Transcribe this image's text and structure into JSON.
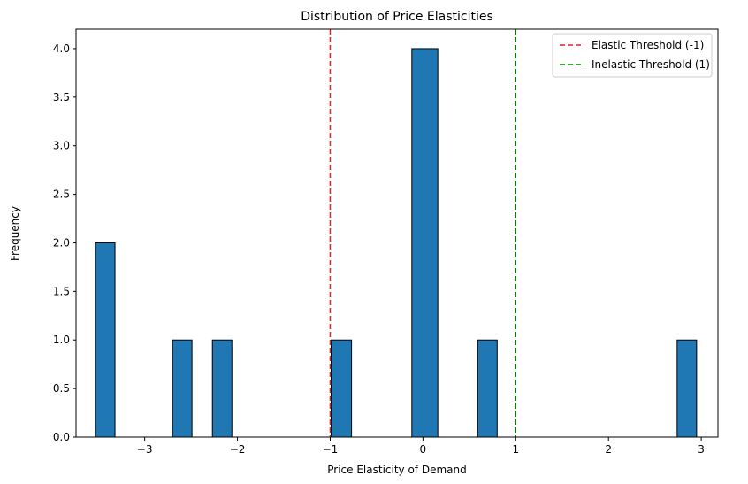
{
  "chart_data": {
    "type": "bar",
    "title": "Distribution of Price Elasticities",
    "xlabel": "Price Elasticity of Demand",
    "ylabel": "Frequency",
    "xlim": [
      -3.74,
      3.18
    ],
    "ylim": [
      0,
      4.2
    ],
    "x_ticks": [
      -3,
      -2,
      -1,
      0,
      1,
      2,
      3
    ],
    "x_tick_labels": [
      "−3",
      "−2",
      "−1",
      "0",
      "1",
      "2",
      "3"
    ],
    "y_ticks": [
      0,
      0.5,
      1,
      1.5,
      2,
      2.5,
      3,
      3.5,
      4
    ],
    "y_tick_labels": [
      "0.0",
      "0.5",
      "1.0",
      "1.5",
      "2.0",
      "2.5",
      "3.0",
      "3.5",
      "4.0"
    ],
    "grid": false,
    "bar_color": "#1f77b4",
    "bars": [
      {
        "x0": -3.53,
        "x1": -3.32,
        "value": 2
      },
      {
        "x0": -2.7,
        "x1": -2.49,
        "value": 1
      },
      {
        "x0": -2.27,
        "x1": -2.06,
        "value": 1
      },
      {
        "x0": -0.99,
        "x1": -0.77,
        "value": 1
      },
      {
        "x0": -0.12,
        "x1": 0.16,
        "value": 4
      },
      {
        "x0": 0.59,
        "x1": 0.8,
        "value": 1
      },
      {
        "x0": 2.74,
        "x1": 2.95,
        "value": 1
      }
    ],
    "reference_lines": [
      {
        "x": -1,
        "color": "#d62728",
        "label": "Elastic Threshold (-1)"
      },
      {
        "x": 1,
        "color": "#008000",
        "label": "Inelastic Threshold (1)"
      }
    ],
    "legend_placement": "top-right"
  }
}
